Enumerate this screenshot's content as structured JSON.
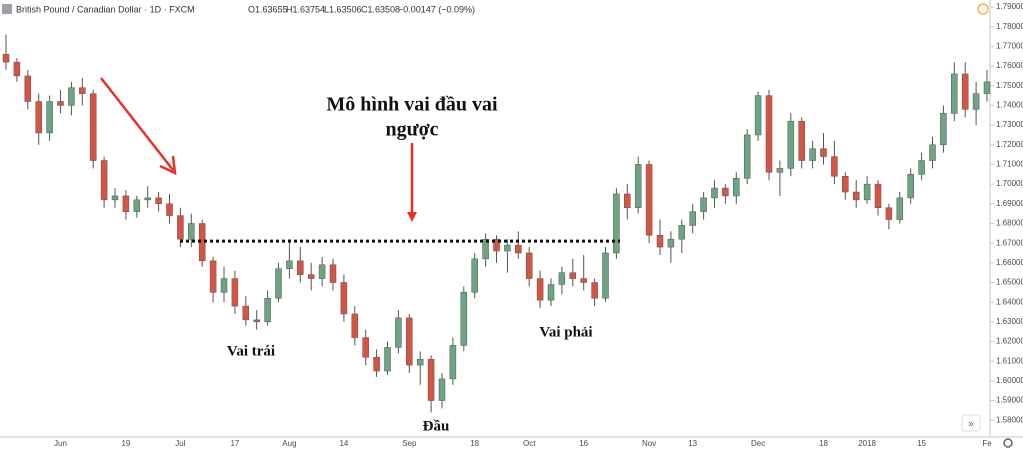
{
  "chart_data": {
    "type": "candlestick",
    "header": {
      "symbol": "British Pound / Canadian Dollar · 1D · FXCM",
      "open": "O1.63655",
      "high": "H1.63754",
      "low": "L1.63506",
      "close": "C1.63508",
      "change": "−0.00147 (−0.09%)"
    },
    "title": "Mô hình vai đầu vai",
    "subtitle": "ngược",
    "annotations": [
      "Vai trái",
      "Đầu",
      "Vai phải"
    ],
    "neckline": 1.671,
    "up_color": "#6ba583",
    "down_color": "#d75442",
    "neckline_color": "#111111",
    "ylim": [
      1.574,
      1.7936
    ],
    "yticks": [
      {
        "value": 1.58,
        "label": "1.58000"
      },
      {
        "value": 1.59,
        "label": "1.59000"
      },
      {
        "value": 1.6,
        "label": "1.60000"
      },
      {
        "value": 1.61,
        "label": "1.61000"
      },
      {
        "value": 1.62,
        "label": "1.62000"
      },
      {
        "value": 1.63,
        "label": "1.63000"
      },
      {
        "value": 1.64,
        "label": "1.64000"
      },
      {
        "value": 1.65,
        "label": "1.65000"
      },
      {
        "value": 1.66,
        "label": "1.66000"
      },
      {
        "value": 1.67,
        "label": "1.67000"
      },
      {
        "value": 1.68,
        "label": "1.68000"
      },
      {
        "value": 1.69,
        "label": "1.69000"
      },
      {
        "value": 1.7,
        "label": "1.70000"
      },
      {
        "value": 1.71,
        "label": "1.71000"
      },
      {
        "value": 1.72,
        "label": "1.72000"
      },
      {
        "value": 1.73,
        "label": "1.73000"
      },
      {
        "value": 1.74,
        "label": "1.74000"
      },
      {
        "value": 1.75,
        "label": "1.75000"
      },
      {
        "value": 1.76,
        "label": "1.76000"
      },
      {
        "value": 1.77,
        "label": "1.77000"
      },
      {
        "value": 1.78,
        "label": "1.78000"
      },
      {
        "value": 1.79,
        "label": "1.79000"
      }
    ],
    "categories": [
      null,
      null,
      null,
      null,
      null,
      "Jun",
      null,
      null,
      null,
      null,
      null,
      "19",
      null,
      null,
      null,
      null,
      "Jul",
      null,
      null,
      null,
      null,
      "17",
      null,
      null,
      null,
      null,
      "Aug",
      null,
      null,
      null,
      null,
      "14",
      null,
      null,
      null,
      null,
      null,
      "Sep",
      null,
      null,
      null,
      null,
      null,
      "18",
      null,
      null,
      null,
      null,
      "Oct",
      null,
      null,
      null,
      null,
      "16",
      null,
      null,
      null,
      null,
      null,
      "Nov",
      null,
      null,
      null,
      "13",
      null,
      null,
      null,
      null,
      null,
      "Dec",
      null,
      null,
      null,
      null,
      null,
      "18",
      null,
      null,
      null,
      "2018",
      null,
      null,
      null,
      null,
      "15",
      null,
      null,
      null,
      null,
      null,
      "Fe"
    ],
    "values": [
      [
        1.766,
        1.776,
        1.758,
        1.762
      ],
      [
        1.762,
        1.764,
        1.752,
        1.755
      ],
      [
        1.755,
        1.758,
        1.738,
        1.742
      ],
      [
        1.742,
        1.746,
        1.72,
        1.726
      ],
      [
        1.726,
        1.745,
        1.722,
        1.742
      ],
      [
        1.742,
        1.748,
        1.736,
        1.74
      ],
      [
        1.74,
        1.752,
        1.735,
        1.749
      ],
      [
        1.749,
        1.754,
        1.74,
        1.746
      ],
      [
        1.746,
        1.748,
        1.708,
        1.712
      ],
      [
        1.712,
        1.714,
        1.688,
        1.692
      ],
      [
        1.692,
        1.698,
        1.688,
        1.694
      ],
      [
        1.694,
        1.697,
        1.682,
        1.686
      ],
      [
        1.686,
        1.694,
        1.683,
        1.692
      ],
      [
        1.692,
        1.699,
        1.688,
        1.693
      ],
      [
        1.693,
        1.696,
        1.686,
        1.69
      ],
      [
        1.69,
        1.695,
        1.68,
        1.684
      ],
      [
        1.684,
        1.688,
        1.668,
        1.672
      ],
      [
        1.672,
        1.685,
        1.668,
        1.68
      ],
      [
        1.68,
        1.682,
        1.658,
        1.661
      ],
      [
        1.661,
        1.663,
        1.64,
        1.645
      ],
      [
        1.645,
        1.658,
        1.64,
        1.652
      ],
      [
        1.652,
        1.656,
        1.634,
        1.638
      ],
      [
        1.638,
        1.643,
        1.628,
        1.631
      ],
      [
        1.631,
        1.636,
        1.626,
        1.63
      ],
      [
        1.63,
        1.646,
        1.628,
        1.642
      ],
      [
        1.642,
        1.66,
        1.64,
        1.657
      ],
      [
        1.657,
        1.672,
        1.652,
        1.661
      ],
      [
        1.661,
        1.668,
        1.65,
        1.654
      ],
      [
        1.654,
        1.66,
        1.646,
        1.652
      ],
      [
        1.652,
        1.663,
        1.648,
        1.659
      ],
      [
        1.659,
        1.662,
        1.646,
        1.65
      ],
      [
        1.65,
        1.654,
        1.63,
        1.634
      ],
      [
        1.634,
        1.638,
        1.618,
        1.622
      ],
      [
        1.622,
        1.626,
        1.608,
        1.612
      ],
      [
        1.612,
        1.616,
        1.602,
        1.605
      ],
      [
        1.605,
        1.62,
        1.603,
        1.617
      ],
      [
        1.617,
        1.636,
        1.614,
        1.632
      ],
      [
        1.632,
        1.634,
        1.604,
        1.608
      ],
      [
        1.608,
        1.615,
        1.598,
        1.611
      ],
      [
        1.611,
        1.613,
        1.584,
        1.59
      ],
      [
        1.59,
        1.604,
        1.586,
        1.601
      ],
      [
        1.601,
        1.622,
        1.598,
        1.618
      ],
      [
        1.618,
        1.648,
        1.615,
        1.645
      ],
      [
        1.645,
        1.665,
        1.642,
        1.662
      ],
      [
        1.662,
        1.675,
        1.658,
        1.672
      ],
      [
        1.672,
        1.674,
        1.66,
        1.666
      ],
      [
        1.666,
        1.672,
        1.655,
        1.669
      ],
      [
        1.669,
        1.676,
        1.662,
        1.665
      ],
      [
        1.665,
        1.668,
        1.648,
        1.652
      ],
      [
        1.652,
        1.656,
        1.637,
        1.641
      ],
      [
        1.641,
        1.652,
        1.638,
        1.649
      ],
      [
        1.649,
        1.658,
        1.644,
        1.655
      ],
      [
        1.655,
        1.662,
        1.648,
        1.652
      ],
      [
        1.652,
        1.664,
        1.646,
        1.65
      ],
      [
        1.65,
        1.652,
        1.638,
        1.642
      ],
      [
        1.642,
        1.668,
        1.64,
        1.665
      ],
      [
        1.665,
        1.698,
        1.662,
        1.695
      ],
      [
        1.695,
        1.7,
        1.682,
        1.688
      ],
      [
        1.688,
        1.714,
        1.685,
        1.71
      ],
      [
        1.71,
        1.712,
        1.67,
        1.674
      ],
      [
        1.674,
        1.682,
        1.664,
        1.668
      ],
      [
        1.668,
        1.676,
        1.66,
        1.672
      ],
      [
        1.672,
        1.682,
        1.665,
        1.679
      ],
      [
        1.679,
        1.69,
        1.675,
        1.686
      ],
      [
        1.686,
        1.696,
        1.682,
        1.693
      ],
      [
        1.693,
        1.702,
        1.688,
        1.698
      ],
      [
        1.698,
        1.7,
        1.69,
        1.694
      ],
      [
        1.694,
        1.706,
        1.69,
        1.703
      ],
      [
        1.703,
        1.728,
        1.7,
        1.725
      ],
      [
        1.725,
        1.747,
        1.722,
        1.745
      ],
      [
        1.745,
        1.748,
        1.702,
        1.706
      ],
      [
        1.706,
        1.712,
        1.694,
        1.708
      ],
      [
        1.708,
        1.736,
        1.704,
        1.732
      ],
      [
        1.732,
        1.734,
        1.708,
        1.712
      ],
      [
        1.712,
        1.722,
        1.708,
        1.718
      ],
      [
        1.718,
        1.726,
        1.71,
        1.714
      ],
      [
        1.714,
        1.722,
        1.7,
        1.704
      ],
      [
        1.704,
        1.706,
        1.692,
        1.696
      ],
      [
        1.696,
        1.702,
        1.688,
        1.692
      ],
      [
        1.692,
        1.704,
        1.69,
        1.7
      ],
      [
        1.7,
        1.702,
        1.684,
        1.688
      ],
      [
        1.688,
        1.69,
        1.677,
        1.682
      ],
      [
        1.682,
        1.696,
        1.68,
        1.693
      ],
      [
        1.693,
        1.708,
        1.69,
        1.705
      ],
      [
        1.705,
        1.716,
        1.702,
        1.712
      ],
      [
        1.712,
        1.724,
        1.708,
        1.72
      ],
      [
        1.72,
        1.74,
        1.716,
        1.736
      ],
      [
        1.736,
        1.762,
        1.732,
        1.756
      ],
      [
        1.756,
        1.762,
        1.734,
        1.738
      ],
      [
        1.738,
        1.752,
        1.73,
        1.746
      ],
      [
        1.746,
        1.758,
        1.742,
        1.752
      ]
    ]
  }
}
